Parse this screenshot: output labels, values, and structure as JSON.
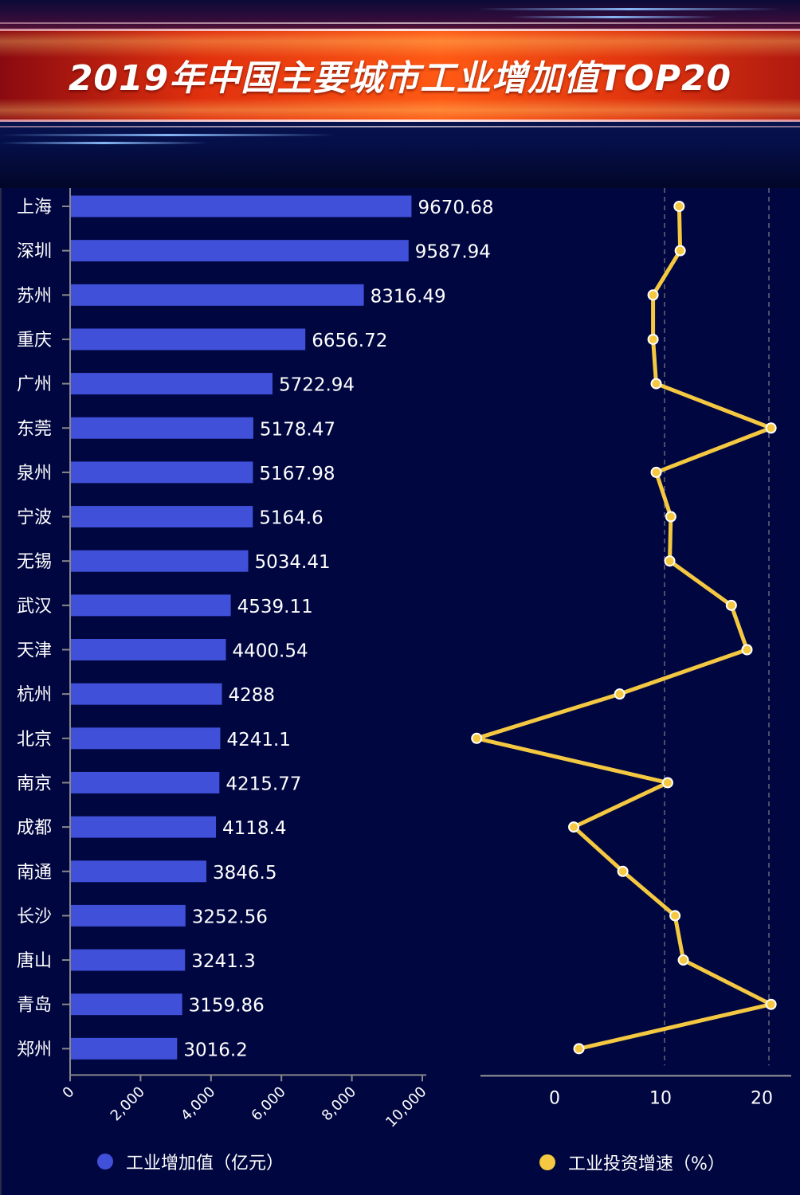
{
  "title": "2019年中国主要城市工业增加值TOP20",
  "colors": {
    "bar": "#4050d8",
    "line": "#f5c842",
    "background": "#000640",
    "grid": "#666677"
  },
  "legend": {
    "bar_label": "工业增加值（亿元）",
    "line_label": "工业投资增速（%）"
  },
  "chart_data": [
    {
      "type": "bar",
      "orientation": "horizontal",
      "title": "2019年中国主要城市工业增加值TOP20",
      "series_name": "工业增加值（亿元）",
      "categories": [
        "上海",
        "深圳",
        "苏州",
        "重庆",
        "广州",
        "东莞",
        "泉州",
        "宁波",
        "无锡",
        "武汉",
        "天津",
        "杭州",
        "北京",
        "南京",
        "成都",
        "南通",
        "长沙",
        "唐山",
        "青岛",
        "郑州"
      ],
      "values": [
        9670.68,
        9587.94,
        8316.49,
        6656.72,
        5722.94,
        5178.47,
        5167.98,
        5164.6,
        5034.41,
        4539.11,
        4400.54,
        4288,
        4241.1,
        4215.77,
        4118.4,
        3846.5,
        3252.56,
        3241.3,
        3159.86,
        3016.2
      ],
      "value_labels": [
        "9670.68",
        "9587.94",
        "8316.49",
        "6656.72",
        "5722.94",
        "5178.47",
        "5167.98",
        "5164.6",
        "5034.41",
        "4539.11",
        "4400.54",
        "4288",
        "4241.1",
        "4215.77",
        "4118.4",
        "3846.5",
        "3252.56",
        "3241.3",
        "3159.86",
        "3016.2"
      ],
      "xlim": [
        0,
        10000
      ],
      "xticks": [
        "0",
        "2,000",
        "4,000",
        "6,000",
        "8,000",
        "10,000"
      ],
      "grid": false
    },
    {
      "type": "line",
      "orientation": "vertical-categories",
      "series_name": "工业投资增速（%）",
      "categories": [
        "上海",
        "深圳",
        "苏州",
        "重庆",
        "广州",
        "东莞",
        "泉州",
        "宁波",
        "无锡",
        "武汉",
        "天津",
        "杭州",
        "北京",
        "南京",
        "成都",
        "南通",
        "长沙",
        "唐山",
        "青岛",
        "郑州"
      ],
      "values": [
        11.4,
        11.5,
        8.9,
        8.9,
        9.2,
        20.2,
        9.2,
        10.6,
        10.5,
        16.4,
        17.9,
        5.7,
        -8.0,
        10.3,
        1.3,
        6.0,
        11.0,
        11.8,
        20.2,
        1.8
      ],
      "xlim": [
        -7.6,
        22
      ],
      "xticks": [
        "0",
        "10",
        "20"
      ],
      "grid": "dashed vertical at 10 and 20"
    }
  ]
}
